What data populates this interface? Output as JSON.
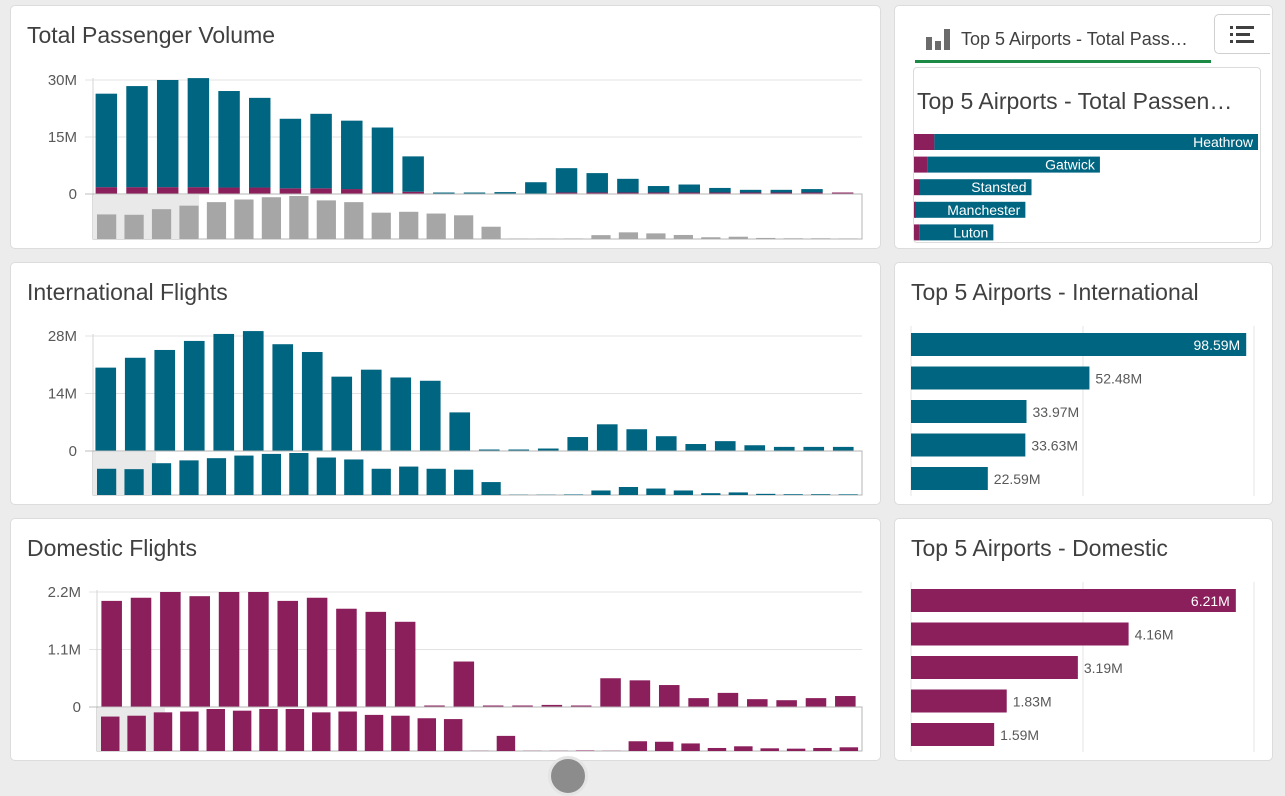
{
  "colors": {
    "international": "#006580",
    "domestic": "#8a1f5c",
    "navigator": "#a6a6a6",
    "tab_accent": "#1a8a44"
  },
  "panels": {
    "total": {
      "title": "Total Passenger Volume",
      "chart_data": {
        "type": "bar",
        "stacked": true,
        "title": "Total Passenger Volume",
        "ylim": [
          0,
          30
        ],
        "yticks": [
          "30M",
          "15M",
          "0"
        ],
        "ytick_values": [
          30,
          15,
          0
        ],
        "unit": "M",
        "series": [
          {
            "name": "Domestic",
            "values": [
              1.8,
              1.8,
              1.8,
              1.8,
              1.7,
              1.7,
              1.5,
              1.5,
              1.3,
              0.1,
              0.6,
              0.0,
              0.0,
              0.0,
              0.0,
              0.4,
              0.4,
              0.3,
              0.1,
              0.2,
              0.1,
              0.1,
              0.1,
              0.1,
              0.1
            ]
          },
          {
            "name": "International",
            "values": [
              24.6,
              26.6,
              28.2,
              28.7,
              25.4,
              23.6,
              18.3,
              19.6,
              18.0,
              17.1,
              9.3,
              0.3,
              0.3,
              0.5,
              3.1,
              6.4,
              5.1,
              3.6,
              1.7,
              2.1,
              1.2,
              0.7,
              0.7,
              0.9,
              0.0
            ]
          }
        ],
        "navigator": [
          14.0,
          13.8,
          17.0,
          19.0,
          21.0,
          22.5,
          23.8,
          24.5,
          22.0,
          21.0,
          15.0,
          15.5,
          14.5,
          13.5,
          7.0,
          0.2,
          0.2,
          0.3,
          2.2,
          3.8,
          3.2,
          2.3,
          1.0,
          1.3,
          0.6,
          0.4,
          0.4,
          0.3
        ]
      }
    },
    "international": {
      "title": "International Flights",
      "chart_data": {
        "type": "bar",
        "title": "International Flights",
        "ylim": [
          0,
          28
        ],
        "yticks": [
          "28M",
          "14M",
          "0"
        ],
        "ytick_values": [
          28,
          14,
          0
        ],
        "unit": "M",
        "series": [
          {
            "name": "International",
            "values": [
              20.3,
              22.7,
              24.6,
              26.8,
              28.5,
              29.2,
              26.0,
              24.1,
              18.1,
              19.8,
              17.9,
              17.1,
              9.4,
              0.3,
              0.3,
              0.6,
              3.4,
              6.5,
              5.3,
              3.6,
              1.7,
              2.4,
              1.4,
              1.0,
              1.0,
              1.0
            ]
          }
        ],
        "navigator": [
          20.3,
          20.0,
          24.6,
          26.8,
          28.5,
          30.5,
          31.8,
          32.5,
          29.0,
          27.5,
          20.3,
          22.0,
          20.3,
          19.6,
          10.0,
          0.2,
          0.2,
          0.4,
          3.5,
          6.2,
          5.0,
          3.5,
          1.4,
          2.0,
          0.9,
          0.6,
          0.6,
          0.5
        ]
      }
    },
    "domestic": {
      "title": "Domestic Flights",
      "chart_data": {
        "type": "bar",
        "title": "Domestic Flights",
        "ylim": [
          0,
          2.2
        ],
        "yticks": [
          "2.2M",
          "1.1M",
          "0"
        ],
        "ytick_values": [
          2.2,
          1.1,
          0
        ],
        "unit": "M",
        "series": [
          {
            "name": "Domestic",
            "values": [
              2.03,
              2.09,
              2.2,
              2.12,
              2.2,
              2.2,
              2.03,
              2.09,
              1.88,
              1.82,
              1.63,
              0.02,
              0.87,
              0.02,
              0.02,
              0.04,
              0.01,
              0.55,
              0.51,
              0.42,
              0.17,
              0.27,
              0.15,
              0.13,
              0.17,
              0.21
            ]
          }
        ],
        "navigator": [
          2.05,
          2.1,
          2.3,
          2.35,
          2.5,
          2.4,
          2.5,
          2.5,
          2.3,
          2.35,
          2.15,
          2.1,
          1.95,
          1.9,
          0.01,
          0.9,
          0.01,
          0.01,
          0.03,
          0.01,
          0.58,
          0.55,
          0.45,
          0.18,
          0.28,
          0.16,
          0.14,
          0.18,
          0.22
        ]
      }
    },
    "top_total": {
      "tab_label": "Top 5 Airports - Total Pass…",
      "inner_title": "Top 5 Airports - Total Passen…",
      "chart_data": {
        "type": "bar",
        "orientation": "horizontal",
        "stacked": true,
        "categories": [
          "Heathrow",
          "Gatwick",
          "Stansted",
          "Manchester",
          "Luton"
        ],
        "series": [
          {
            "name": "Domestic",
            "values": [
              6.21,
              4.16,
              1.83,
              0.3,
              1.59
            ]
          },
          {
            "name": "International",
            "values": [
              98.59,
              52.48,
              33.97,
              33.63,
              22.59
            ]
          }
        ]
      }
    },
    "top_international": {
      "title": "Top 5 Airports - International",
      "chart_data": {
        "type": "bar",
        "orientation": "horizontal",
        "values": [
          98.59,
          52.48,
          33.97,
          33.63,
          22.59
        ],
        "labels": [
          "98.59M",
          "52.48M",
          "33.97M",
          "33.63M",
          "22.59M"
        ],
        "xlim": [
          0,
          100
        ]
      }
    },
    "top_domestic": {
      "title": "Top 5 Airports - Domestic",
      "chart_data": {
        "type": "bar",
        "orientation": "horizontal",
        "values": [
          6.21,
          4.16,
          3.19,
          1.83,
          1.59
        ],
        "labels": [
          "6.21M",
          "4.16M",
          "3.19M",
          "1.83M",
          "1.59M"
        ],
        "xlim": [
          0,
          6.5
        ]
      }
    }
  }
}
